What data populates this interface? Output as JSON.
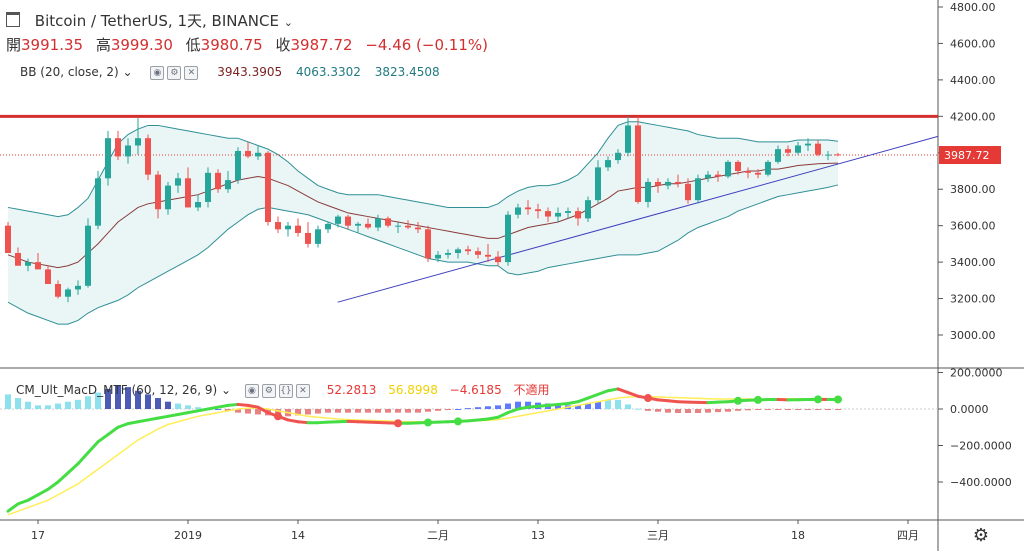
{
  "symbol": {
    "title": "Bitcoin / TetherUS, 1天, BINANCE",
    "open_label": "開",
    "open": "3991.35",
    "high_label": "高",
    "high": "3999.30",
    "low_label": "低",
    "low": "3980.75",
    "close_label": "收",
    "close": "3987.72",
    "change": "−4.46 (−0.11%)"
  },
  "bb_indicator": {
    "label": "BB (20, close, 2)",
    "basis": "3943.3905",
    "upper": "4063.3302",
    "lower": "3823.4508"
  },
  "macd_indicator": {
    "label": "CM_Ult_MacD_MTF (60, 12, 26, 9)",
    "macd": "52.2813",
    "signal": "56.8998",
    "hist": "−4.6185",
    "extra": "不適用"
  },
  "price_scale": {
    "ticks": [
      "4800.00",
      "4600.00",
      "4400.00",
      "4200.00",
      "4000.00",
      "3800.00",
      "3600.00",
      "3400.00",
      "3200.00",
      "3000.00"
    ],
    "last_price": "3987.72"
  },
  "macd_scale": {
    "ticks": [
      "200.0000",
      "0.0000",
      "−200.0000",
      "−400.0000"
    ]
  },
  "time_axis": {
    "labels": [
      "17",
      "2019",
      "14",
      "二月",
      "13",
      "三月",
      "18",
      "四月"
    ]
  },
  "colors": {
    "up": "#26a69a",
    "down": "#ef5350",
    "bb_band": "#2f8f95",
    "bb_basis": "#8b3a3a",
    "resistance": "#d32f2f",
    "trend": "#3f3fbf",
    "macd_line": "#ef5350",
    "macd_up": "#44dd44",
    "signal_line": "#ffee58"
  },
  "chart_data": {
    "type": "candlestick",
    "price_ylim": [
      3000,
      4800
    ],
    "bars": [
      [
        3600,
        3620,
        3520,
        3450
      ],
      [
        3450,
        3480,
        3400,
        3380
      ],
      [
        3380,
        3420,
        3350,
        3400
      ],
      [
        3400,
        3450,
        3380,
        3360
      ],
      [
        3360,
        3380,
        3290,
        3280
      ],
      [
        3280,
        3300,
        3200,
        3210
      ],
      [
        3210,
        3260,
        3180,
        3250
      ],
      [
        3250,
        3300,
        3220,
        3270
      ],
      [
        3270,
        3640,
        3260,
        3600
      ],
      [
        3600,
        3900,
        3580,
        3860
      ],
      [
        3860,
        4120,
        3820,
        4080
      ],
      [
        4080,
        4120,
        3960,
        3980
      ],
      [
        3980,
        4080,
        3940,
        4040
      ],
      [
        4040,
        4190,
        3990,
        4080
      ],
      [
        4080,
        4100,
        3850,
        3880
      ],
      [
        3880,
        3900,
        3640,
        3690
      ],
      [
        3690,
        3840,
        3660,
        3820
      ],
      [
        3820,
        3890,
        3780,
        3860
      ],
      [
        3860,
        3920,
        3700,
        3700
      ],
      [
        3700,
        3770,
        3680,
        3730
      ],
      [
        3730,
        3920,
        3700,
        3890
      ],
      [
        3890,
        3910,
        3780,
        3800
      ],
      [
        3800,
        3900,
        3780,
        3850
      ],
      [
        3850,
        4030,
        3830,
        4010
      ],
      [
        4010,
        4060,
        3970,
        3980
      ],
      [
        3980,
        4040,
        3960,
        4000
      ],
      [
        4000,
        4010,
        3600,
        3620
      ],
      [
        3620,
        3650,
        3560,
        3580
      ],
      [
        3580,
        3620,
        3540,
        3600
      ],
      [
        3600,
        3640,
        3540,
        3560
      ],
      [
        3560,
        3620,
        3480,
        3500
      ],
      [
        3500,
        3600,
        3480,
        3580
      ],
      [
        3580,
        3620,
        3560,
        3610
      ],
      [
        3610,
        3660,
        3590,
        3650
      ],
      [
        3650,
        3660,
        3580,
        3600
      ],
      [
        3600,
        3620,
        3560,
        3610
      ],
      [
        3610,
        3640,
        3580,
        3590
      ],
      [
        3590,
        3660,
        3570,
        3640
      ],
      [
        3640,
        3650,
        3590,
        3600
      ],
      [
        3600,
        3620,
        3560,
        3600
      ],
      [
        3600,
        3630,
        3580,
        3590
      ],
      [
        3590,
        3620,
        3560,
        3580
      ],
      [
        3580,
        3600,
        3400,
        3420
      ],
      [
        3420,
        3460,
        3400,
        3440
      ],
      [
        3440,
        3470,
        3420,
        3450
      ],
      [
        3450,
        3480,
        3420,
        3470
      ],
      [
        3470,
        3490,
        3440,
        3460
      ],
      [
        3460,
        3480,
        3420,
        3440
      ],
      [
        3440,
        3500,
        3400,
        3430
      ],
      [
        3430,
        3460,
        3380,
        3400
      ],
      [
        3400,
        3680,
        3380,
        3660
      ],
      [
        3660,
        3720,
        3640,
        3700
      ],
      [
        3700,
        3740,
        3660,
        3690
      ],
      [
        3690,
        3720,
        3640,
        3680
      ],
      [
        3680,
        3700,
        3620,
        3650
      ],
      [
        3650,
        3700,
        3620,
        3670
      ],
      [
        3670,
        3700,
        3640,
        3680
      ],
      [
        3680,
        3700,
        3600,
        3640
      ],
      [
        3640,
        3760,
        3620,
        3740
      ],
      [
        3740,
        3960,
        3720,
        3920
      ],
      [
        3920,
        3980,
        3900,
        3960
      ],
      [
        3960,
        4020,
        3940,
        4000
      ],
      [
        4000,
        4200,
        3980,
        4150
      ],
      [
        4150,
        4200,
        3720,
        3730
      ],
      [
        3730,
        3860,
        3700,
        3840
      ],
      [
        3840,
        3860,
        3780,
        3820
      ],
      [
        3820,
        3860,
        3800,
        3840
      ],
      [
        3840,
        3880,
        3810,
        3830
      ],
      [
        3830,
        3860,
        3720,
        3740
      ],
      [
        3740,
        3880,
        3720,
        3860
      ],
      [
        3860,
        3900,
        3840,
        3880
      ],
      [
        3880,
        3900,
        3840,
        3870
      ],
      [
        3870,
        3960,
        3860,
        3950
      ],
      [
        3950,
        3960,
        3880,
        3900
      ],
      [
        3900,
        3920,
        3860,
        3890
      ],
      [
        3890,
        3910,
        3860,
        3880
      ],
      [
        3880,
        3960,
        3870,
        3950
      ],
      [
        3950,
        4040,
        3940,
        4020
      ],
      [
        4020,
        4040,
        3980,
        4000
      ],
      [
        4000,
        4060,
        3990,
        4040
      ],
      [
        4040,
        4080,
        4010,
        4050
      ],
      [
        4050,
        4070,
        3980,
        3990
      ],
      [
        3990,
        4010,
        3960,
        3990
      ],
      [
        3991.35,
        3999.3,
        3980.75,
        3987.72
      ]
    ],
    "bb_upper": [
      3700,
      3690,
      3680,
      3670,
      3660,
      3650,
      3660,
      3700,
      3750,
      3850,
      3950,
      4050,
      4100,
      4130,
      4150,
      4150,
      4140,
      4130,
      4120,
      4110,
      4100,
      4090,
      4080,
      4080,
      4060,
      4040,
      4020,
      3990,
      3950,
      3900,
      3860,
      3820,
      3800,
      3780,
      3770,
      3770,
      3770,
      3770,
      3760,
      3750,
      3740,
      3730,
      3720,
      3710,
      3700,
      3700,
      3700,
      3700,
      3700,
      3720,
      3760,
      3790,
      3810,
      3820,
      3820,
      3830,
      3850,
      3880,
      3940,
      4000,
      4080,
      4150,
      4170,
      4170,
      4160,
      4150,
      4140,
      4130,
      4120,
      4100,
      4090,
      4080,
      4080,
      4080,
      4070,
      4060,
      4060,
      4060,
      4060,
      4070,
      4070,
      4070,
      4070,
      4063.33
    ],
    "bb_basis": [
      3440,
      3420,
      3400,
      3390,
      3380,
      3370,
      3380,
      3400,
      3450,
      3500,
      3560,
      3620,
      3660,
      3700,
      3720,
      3730,
      3740,
      3750,
      3760,
      3770,
      3790,
      3810,
      3830,
      3850,
      3860,
      3870,
      3860,
      3840,
      3820,
      3790,
      3760,
      3730,
      3710,
      3690,
      3670,
      3660,
      3650,
      3640,
      3630,
      3620,
      3610,
      3600,
      3590,
      3580,
      3570,
      3560,
      3550,
      3540,
      3530,
      3530,
      3550,
      3570,
      3590,
      3600,
      3610,
      3620,
      3640,
      3660,
      3690,
      3720,
      3750,
      3790,
      3800,
      3810,
      3810,
      3820,
      3830,
      3830,
      3840,
      3850,
      3860,
      3870,
      3880,
      3890,
      3900,
      3900,
      3910,
      3910,
      3920,
      3930,
      3935,
      3940,
      3942,
      3943.39
    ],
    "bb_lower": [
      3180,
      3150,
      3120,
      3100,
      3080,
      3060,
      3060,
      3080,
      3120,
      3150,
      3170,
      3190,
      3220,
      3260,
      3290,
      3320,
      3350,
      3380,
      3410,
      3440,
      3480,
      3530,
      3580,
      3620,
      3660,
      3690,
      3700,
      3690,
      3680,
      3670,
      3660,
      3640,
      3620,
      3600,
      3580,
      3560,
      3540,
      3520,
      3500,
      3480,
      3460,
      3440,
      3420,
      3410,
      3400,
      3400,
      3400,
      3390,
      3380,
      3380,
      3340,
      3330,
      3340,
      3350,
      3370,
      3380,
      3390,
      3400,
      3410,
      3420,
      3430,
      3440,
      3440,
      3440,
      3450,
      3460,
      3490,
      3520,
      3560,
      3590,
      3610,
      3630,
      3650,
      3680,
      3700,
      3720,
      3740,
      3760,
      3770,
      3780,
      3790,
      3800,
      3810,
      3823.45
    ],
    "resistance_level": 4200,
    "trendline": [
      [
        3180,
        0.36
      ],
      [
        4090,
        1.0
      ]
    ],
    "macd_ylim": [
      -600,
      200
    ],
    "macd": [
      -560,
      -520,
      -500,
      -470,
      -440,
      -400,
      -350,
      -300,
      -240,
      -180,
      -140,
      -100,
      -80,
      -70,
      -60,
      -50,
      -40,
      -30,
      -20,
      -10,
      0,
      10,
      20,
      25,
      20,
      10,
      -20,
      -40,
      -60,
      -70,
      -75,
      -75,
      -72,
      -70,
      -68,
      -70,
      -72,
      -74,
      -76,
      -78,
      -78,
      -76,
      -74,
      -72,
      -70,
      -68,
      -65,
      -60,
      -55,
      -45,
      -20,
      0,
      10,
      15,
      20,
      25,
      30,
      40,
      60,
      80,
      100,
      110,
      90,
      70,
      60,
      50,
      45,
      40,
      38,
      36,
      35,
      38,
      40,
      45,
      48,
      50,
      52,
      52,
      50,
      51,
      52,
      53,
      52,
      52.28
    ],
    "signal": [
      -580,
      -560,
      -540,
      -520,
      -500,
      -470,
      -440,
      -410,
      -370,
      -330,
      -290,
      -250,
      -210,
      -170,
      -140,
      -110,
      -85,
      -70,
      -55,
      -40,
      -30,
      -20,
      -10,
      0,
      5,
      5,
      0,
      -10,
      -20,
      -30,
      -40,
      -45,
      -50,
      -55,
      -58,
      -60,
      -62,
      -64,
      -66,
      -68,
      -70,
      -70,
      -70,
      -70,
      -69,
      -68,
      -66,
      -64,
      -62,
      -58,
      -50,
      -40,
      -30,
      -20,
      -10,
      0,
      10,
      20,
      30,
      40,
      50,
      60,
      65,
      68,
      68,
      66,
      64,
      62,
      60,
      58,
      56,
      55,
      55,
      55,
      55,
      55,
      55,
      55,
      56,
      56,
      56,
      57,
      57,
      56.9
    ],
    "hist": [
      80,
      60,
      40,
      20,
      20,
      30,
      40,
      50,
      70,
      90,
      110,
      130,
      120,
      100,
      80,
      60,
      40,
      30,
      20,
      10,
      5,
      0,
      -10,
      -20,
      -25,
      -30,
      -35,
      -40,
      -40,
      -35,
      -30,
      -25,
      -20,
      -20,
      -20,
      -20,
      -20,
      -20,
      -20,
      -20,
      -20,
      -20,
      -15,
      -10,
      -5,
      0,
      5,
      10,
      15,
      20,
      30,
      40,
      40,
      35,
      30,
      25,
      20,
      20,
      30,
      40,
      50,
      50,
      25,
      2,
      -10,
      -15,
      -20,
      -22,
      -22,
      -22,
      -20,
      -17,
      -15,
      -10,
      -7,
      -5,
      -3,
      -3,
      -5,
      -5,
      -5,
      -4,
      -5,
      -4.62
    ],
    "cross_points": [
      27,
      39,
      45,
      42,
      64,
      73,
      75,
      81,
      83
    ]
  }
}
